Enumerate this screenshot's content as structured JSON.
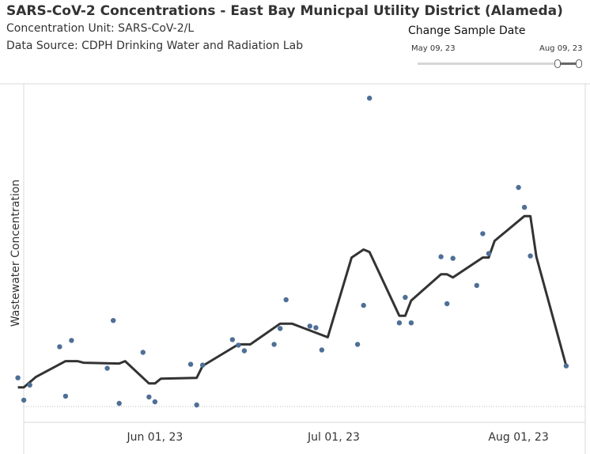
{
  "header": {
    "title": "SARS-CoV-2 Concentrations - East Bay Municpal Utility District (Alameda)",
    "unit_line": "Concentration Unit:  SARS-CoV-2/L",
    "source_line": "Data Source: CDPH Drinking Water and Radiation Lab"
  },
  "filter": {
    "title": "Change Sample Date",
    "min_label": "May 09, 23",
    "max_label": "Aug 09, 23",
    "range_selected": [
      "May 09, 23",
      "Aug 09, 23"
    ]
  },
  "chart_data": {
    "type": "scatter",
    "title": "",
    "xlabel": "",
    "ylabel": "Wastewater Concentration",
    "x_tick_labels": [
      "Jun 01, 23",
      "Jul 01, 23",
      "Aug 01, 23"
    ],
    "x_ticks": [
      "2023-06-01",
      "2023-07-01",
      "2023-08-01"
    ],
    "xlim": [
      "2023-05-06",
      "2023-08-13"
    ],
    "ylim": [
      0,
      404
    ],
    "y_axis_labels_shown": false,
    "gridlines": false,
    "colors": {
      "points": "#4e6f96",
      "trend": "#333333",
      "zero_line": "#bbbbbb",
      "axis": "#d9d9d9"
    },
    "series": [
      {
        "type": "scatter",
        "points": [
          {
            "x": "2023-05-09",
            "y": 36
          },
          {
            "x": "2023-05-10",
            "y": 8
          },
          {
            "x": "2023-05-11",
            "y": 27
          },
          {
            "x": "2023-05-16",
            "y": 75
          },
          {
            "x": "2023-05-17",
            "y": 13
          },
          {
            "x": "2023-05-18",
            "y": 83
          },
          {
            "x": "2023-05-24",
            "y": 48
          },
          {
            "x": "2023-05-25",
            "y": 108
          },
          {
            "x": "2023-05-26",
            "y": 4
          },
          {
            "x": "2023-05-30",
            "y": 68
          },
          {
            "x": "2023-05-31",
            "y": 12
          },
          {
            "x": "2023-06-01",
            "y": 6
          },
          {
            "x": "2023-06-07",
            "y": 53
          },
          {
            "x": "2023-06-08",
            "y": 2
          },
          {
            "x": "2023-06-09",
            "y": 52
          },
          {
            "x": "2023-06-14",
            "y": 84
          },
          {
            "x": "2023-06-15",
            "y": 77
          },
          {
            "x": "2023-06-16",
            "y": 70
          },
          {
            "x": "2023-06-21",
            "y": 78
          },
          {
            "x": "2023-06-22",
            "y": 98
          },
          {
            "x": "2023-06-23",
            "y": 134
          },
          {
            "x": "2023-06-27",
            "y": 101
          },
          {
            "x": "2023-06-28",
            "y": 99
          },
          {
            "x": "2023-06-29",
            "y": 71
          },
          {
            "x": "2023-07-05",
            "y": 78
          },
          {
            "x": "2023-07-06",
            "y": 127
          },
          {
            "x": "2023-07-07",
            "y": 387
          },
          {
            "x": "2023-07-12",
            "y": 105
          },
          {
            "x": "2023-07-13",
            "y": 137
          },
          {
            "x": "2023-07-14",
            "y": 105
          },
          {
            "x": "2023-07-19",
            "y": 188
          },
          {
            "x": "2023-07-20",
            "y": 129
          },
          {
            "x": "2023-07-21",
            "y": 186
          },
          {
            "x": "2023-07-25",
            "y": 152
          },
          {
            "x": "2023-07-26",
            "y": 217
          },
          {
            "x": "2023-07-27",
            "y": 192
          },
          {
            "x": "2023-08-01",
            "y": 275
          },
          {
            "x": "2023-08-02",
            "y": 250
          },
          {
            "x": "2023-08-03",
            "y": 189
          },
          {
            "x": "2023-08-09",
            "y": 51
          }
        ]
      },
      {
        "type": "line",
        "points": [
          {
            "x": "2023-05-09",
            "y": 24
          },
          {
            "x": "2023-05-10",
            "y": 24
          },
          {
            "x": "2023-05-12",
            "y": 37
          },
          {
            "x": "2023-05-17",
            "y": 57
          },
          {
            "x": "2023-05-19",
            "y": 57
          },
          {
            "x": "2023-05-20",
            "y": 55
          },
          {
            "x": "2023-05-26",
            "y": 54
          },
          {
            "x": "2023-05-27",
            "y": 57
          },
          {
            "x": "2023-05-31",
            "y": 29
          },
          {
            "x": "2023-06-01",
            "y": 29
          },
          {
            "x": "2023-06-02",
            "y": 35
          },
          {
            "x": "2023-06-08",
            "y": 36
          },
          {
            "x": "2023-06-09",
            "y": 51
          },
          {
            "x": "2023-06-15",
            "y": 78
          },
          {
            "x": "2023-06-17",
            "y": 78
          },
          {
            "x": "2023-06-22",
            "y": 104
          },
          {
            "x": "2023-06-24",
            "y": 104
          },
          {
            "x": "2023-06-30",
            "y": 87
          },
          {
            "x": "2023-07-04",
            "y": 187
          },
          {
            "x": "2023-07-06",
            "y": 197
          },
          {
            "x": "2023-07-07",
            "y": 194
          },
          {
            "x": "2023-07-12",
            "y": 114
          },
          {
            "x": "2023-07-13",
            "y": 114
          },
          {
            "x": "2023-07-14",
            "y": 133
          },
          {
            "x": "2023-07-19",
            "y": 166
          },
          {
            "x": "2023-07-20",
            "y": 166
          },
          {
            "x": "2023-07-21",
            "y": 162
          },
          {
            "x": "2023-07-26",
            "y": 187
          },
          {
            "x": "2023-07-27",
            "y": 187
          },
          {
            "x": "2023-07-28",
            "y": 208
          },
          {
            "x": "2023-08-02",
            "y": 239
          },
          {
            "x": "2023-08-03",
            "y": 239
          },
          {
            "x": "2023-08-04",
            "y": 188
          },
          {
            "x": "2023-08-09",
            "y": 51
          }
        ]
      }
    ]
  }
}
